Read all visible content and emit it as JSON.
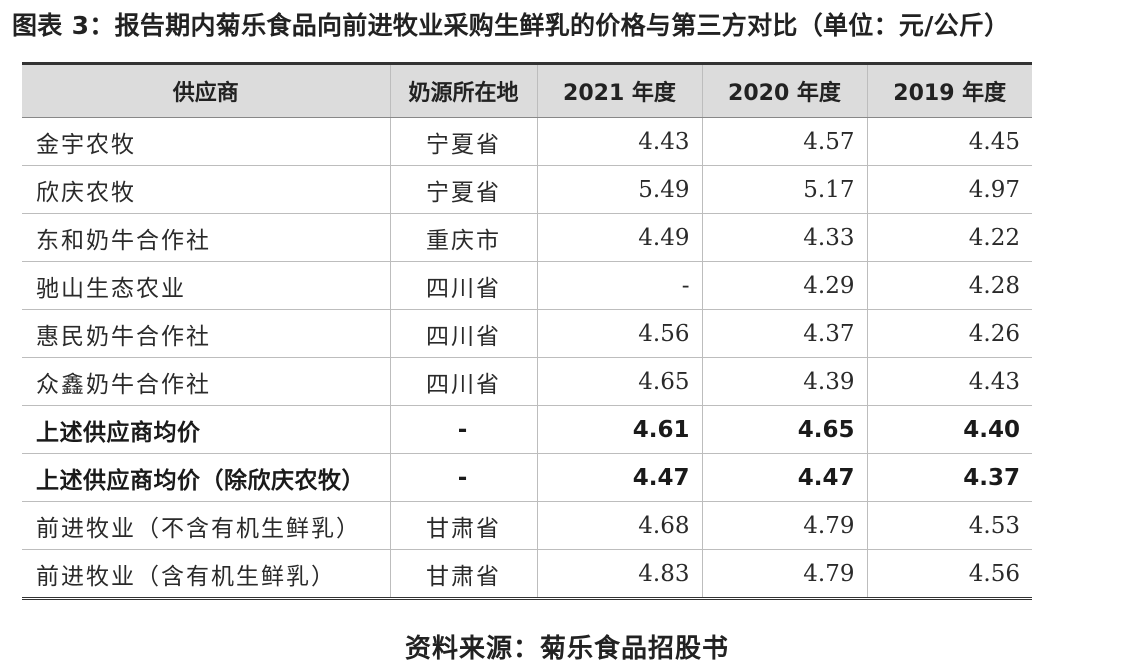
{
  "title": "图表 3：报告期内菊乐食品向前进牧业采购生鲜乳的价格与第三方对比（单位：元/公斤）",
  "table": {
    "headers": [
      "供应商",
      "奶源所在地",
      "2021 年度",
      "2020 年度",
      "2019 年度"
    ],
    "rows": [
      {
        "supplier": "金宇农牧",
        "origin": "宁夏省",
        "y2021": "4.43",
        "y2020": "4.57",
        "y2019": "4.45",
        "bold": false
      },
      {
        "supplier": "欣庆农牧",
        "origin": "宁夏省",
        "y2021": "5.49",
        "y2020": "5.17",
        "y2019": "4.97",
        "bold": false
      },
      {
        "supplier": "东和奶牛合作社",
        "origin": "重庆市",
        "y2021": "4.49",
        "y2020": "4.33",
        "y2019": "4.22",
        "bold": false
      },
      {
        "supplier": "驰山生态农业",
        "origin": "四川省",
        "y2021": "-",
        "y2020": "4.29",
        "y2019": "4.28",
        "bold": false
      },
      {
        "supplier": "惠民奶牛合作社",
        "origin": "四川省",
        "y2021": "4.56",
        "y2020": "4.37",
        "y2019": "4.26",
        "bold": false
      },
      {
        "supplier": "众鑫奶牛合作社",
        "origin": "四川省",
        "y2021": "4.65",
        "y2020": "4.39",
        "y2019": "4.43",
        "bold": false
      },
      {
        "supplier": "上述供应商均价",
        "origin": "-",
        "y2021": "4.61",
        "y2020": "4.65",
        "y2019": "4.40",
        "bold": true
      },
      {
        "supplier": "上述供应商均价（除欣庆农牧）",
        "origin": "-",
        "y2021": "4.47",
        "y2020": "4.47",
        "y2019": "4.37",
        "bold": true
      },
      {
        "supplier": "前进牧业（不含有机生鲜乳）",
        "origin": "甘肃省",
        "y2021": "4.68",
        "y2020": "4.79",
        "y2019": "4.53",
        "bold": false
      },
      {
        "supplier": "前进牧业（含有机生鲜乳）",
        "origin": "甘肃省",
        "y2021": "4.83",
        "y2020": "4.79",
        "y2019": "4.56",
        "bold": false
      }
    ]
  },
  "source": "资料来源：菊乐食品招股书"
}
